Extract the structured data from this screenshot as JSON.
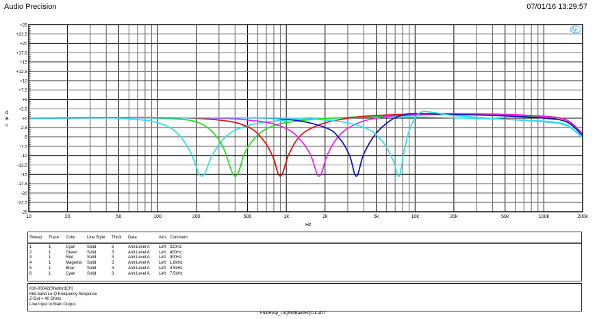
{
  "header": {
    "title": "Audio Precision",
    "datetime": "07/01/16 13:29:57",
    "logo": "Ap"
  },
  "chart_data": {
    "type": "line",
    "title": "",
    "xlabel": "Hz",
    "ylabel": "dBu",
    "xscale": "log",
    "xlim": [
      10,
      200000
    ],
    "ylim": [
      -25,
      25
    ],
    "grid": true,
    "x_tick_labels": [
      "10",
      "20",
      "50",
      "100",
      "200",
      "500",
      "1k",
      "2k",
      "5k",
      "10k",
      "20k",
      "50k",
      "100k",
      "200k"
    ],
    "x_tick_values": [
      10,
      20,
      50,
      100,
      200,
      500,
      1000,
      2000,
      5000,
      10000,
      20000,
      50000,
      100000,
      200000
    ],
    "y_tick_labels": [
      "+25",
      "+22.5",
      "+20",
      "+17.5",
      "+15",
      "+12.5",
      "+10",
      "+7.5",
      "+5",
      "+2.5",
      "+0",
      "-2.5",
      "-5",
      "-7.5",
      "-10",
      "-12.5",
      "-15",
      "-17.5",
      "-20",
      "-22.5",
      "-25"
    ],
    "y_tick_values": [
      25,
      22.5,
      20,
      17.5,
      15,
      12.5,
      10,
      7.5,
      5,
      2.5,
      0,
      -2.5,
      -5,
      -7.5,
      -10,
      -12.5,
      -15,
      -17.5,
      -20,
      -22.5,
      -25
    ],
    "series": [
      {
        "name": "220Hz",
        "color": "#33ddee",
        "center_hz": 220,
        "depth_db": -15.5,
        "x": [
          10,
          30,
          60,
          100,
          140,
          180,
          220,
          270,
          350,
          500,
          800,
          1500,
          3000,
          6000,
          10000,
          20000,
          50000,
          100000,
          150000,
          200000
        ],
        "y": [
          0,
          0.2,
          -0.2,
          -1.2,
          -3.8,
          -9,
          -15.5,
          -9.5,
          -4.5,
          -2,
          -0.8,
          -0.2,
          0.1,
          0.4,
          0.3,
          0.1,
          -0.3,
          -0.8,
          -1.8,
          -5
        ]
      },
      {
        "name": "400Hz",
        "color": "#22dd22",
        "center_hz": 400,
        "depth_db": -15.5,
        "x": [
          10,
          50,
          100,
          180,
          250,
          320,
          400,
          480,
          600,
          800,
          1200,
          2000,
          4000,
          8000,
          20000,
          50000,
          100000,
          150000,
          200000
        ],
        "y": [
          0,
          0.2,
          0,
          -0.6,
          -2.8,
          -7.5,
          -15.5,
          -9,
          -4.5,
          -2,
          -0.8,
          -0.1,
          0.4,
          0.7,
          1,
          0.8,
          0.3,
          -0.5,
          -4.5
        ]
      },
      {
        "name": "900Hz",
        "color": "#dd1111",
        "center_hz": 900,
        "depth_db": -15.5,
        "x": [
          10,
          100,
          300,
          500,
          650,
          780,
          900,
          1050,
          1300,
          1800,
          2500,
          4000,
          8000,
          20000,
          50000,
          100000,
          150000,
          200000
        ],
        "y": [
          0,
          0.2,
          -0.5,
          -2.3,
          -5.5,
          -10,
          -15.5,
          -9.5,
          -4.5,
          -1.8,
          -0.5,
          0.5,
          1,
          1.2,
          1,
          0.5,
          -0.5,
          -4.2
        ]
      },
      {
        "name": "1.8kHz",
        "color": "#ee22ee",
        "center_hz": 1800,
        "depth_db": -15.5,
        "x": [
          10,
          200,
          600,
          1000,
          1300,
          1550,
          1800,
          2100,
          2600,
          3500,
          5000,
          8000,
          20000,
          50000,
          100000,
          150000,
          200000
        ],
        "y": [
          0,
          0.1,
          -0.8,
          -2.8,
          -6,
          -10,
          -15.5,
          -9.5,
          -4.5,
          -1.5,
          0,
          0.8,
          1.2,
          1,
          0.4,
          -0.6,
          -4.4
        ]
      },
      {
        "name": "3.5kHz",
        "color": "#1111bb",
        "center_hz": 3500,
        "depth_db": -15.5,
        "x": [
          10,
          300,
          1000,
          2000,
          2600,
          3100,
          3500,
          4000,
          5000,
          6500,
          8000,
          10000,
          20000,
          50000,
          100000,
          150000,
          200000
        ],
        "y": [
          0,
          0.1,
          -0.3,
          -2.5,
          -5.5,
          -10,
          -15.5,
          -9.5,
          -4,
          -0.5,
          0.8,
          1.2,
          1,
          0.6,
          0,
          -1,
          -4.6
        ]
      },
      {
        "name": "7.5kHz",
        "color": "#33ddee",
        "center_hz": 7500,
        "depth_db": -15.5,
        "x": [
          10,
          500,
          2000,
          4000,
          5500,
          6700,
          7500,
          8300,
          9300,
          11000,
          14000,
          20000,
          50000,
          100000,
          150000,
          200000
        ],
        "y": [
          0,
          0.1,
          -0.5,
          -2.5,
          -6,
          -11,
          -15.5,
          -8,
          -2,
          1.5,
          1.5,
          0.7,
          -0.3,
          -1,
          -2,
          -5.3
        ]
      }
    ]
  },
  "legend_table": {
    "columns": [
      "Sweep",
      "Trace",
      "Color",
      "Line Style",
      "Thick",
      "Data",
      "Axis",
      "Comment"
    ],
    "rows": [
      [
        "1",
        "1",
        "Cyan",
        "Solid",
        "3",
        "Anlr.Level A",
        "Left",
        "220Hz"
      ],
      [
        "2",
        "1",
        "Green",
        "Solid",
        "3",
        "Anlr.Level A",
        "Left",
        "400Hz"
      ],
      [
        "3",
        "1",
        "Red",
        "Solid",
        "3",
        "Anlr.Level A",
        "Left",
        "900Hz"
      ],
      [
        "4",
        "1",
        "Magenta",
        "Solid",
        "3",
        "Anlr.Level A",
        "Left",
        "1.8kHz"
      ],
      [
        "5",
        "1",
        "Blue",
        "Solid",
        "3",
        "Anlr.Level A",
        "Left",
        "3.5kHz"
      ],
      [
        "6",
        "1",
        "Cyan",
        "Solid",
        "3",
        "Anlr.Level A",
        "Left",
        "7.5kHz"
      ]
    ]
  },
  "notes": [
    "810-00042(ShelfordCH)",
    "Mid-band Lo-Q Frequency Response",
    "Z-Out = 40 Ohms",
    "Line Input to Main Output"
  ],
  "footer": {
    "filename": "FreqResp_LoQMidBandEQCut.at27"
  }
}
